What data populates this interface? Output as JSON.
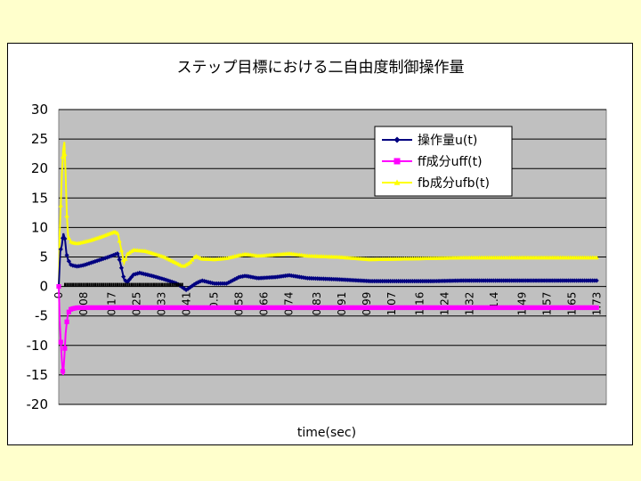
{
  "colors": {
    "page_background": "#ffffcc",
    "plot_background": "#c0c0c0",
    "gridline": "#000000",
    "series_u": "#000080",
    "series_uff": "#ff00ff",
    "series_ufb": "#ffff00"
  },
  "chart_data": {
    "type": "line",
    "title": "ステップ目標における二自由度制御操作量",
    "xlabel": "time(sec)",
    "ylabel": "",
    "ylim": [
      -20,
      30
    ],
    "yticks": [
      30,
      25,
      20,
      15,
      10,
      5,
      0,
      -5,
      -10,
      -15,
      -20
    ],
    "grid": true,
    "legend_position": "top-right",
    "x_tick_labels": [
      "0",
      "0.08",
      "0.17",
      "0.25",
      "0.33",
      "0.41",
      "0.5",
      "0.58",
      "0.66",
      "0.74",
      "0.83",
      "0.91",
      "0.99",
      "1.07",
      "1.16",
      "1.24",
      "1.32",
      "1.4",
      "1.49",
      "1.57",
      "1.65",
      "1.73"
    ],
    "x_tick_values": [
      0,
      0.08,
      0.17,
      0.25,
      0.33,
      0.41,
      0.5,
      0.58,
      0.66,
      0.74,
      0.83,
      0.91,
      0.99,
      1.07,
      1.16,
      1.24,
      1.32,
      1.4,
      1.49,
      1.57,
      1.65,
      1.73
    ],
    "xlim": [
      0,
      1.76
    ],
    "series": [
      {
        "name": "操作量u(t)",
        "marker": "diamond",
        "color": "#000080",
        "points": [
          [
            0,
            0
          ],
          [
            0.005,
            6
          ],
          [
            0.01,
            7
          ],
          [
            0.015,
            9
          ],
          [
            0.02,
            8
          ],
          [
            0.025,
            5.5
          ],
          [
            0.03,
            4.5
          ],
          [
            0.04,
            3.6
          ],
          [
            0.06,
            3.4
          ],
          [
            0.08,
            3.6
          ],
          [
            0.12,
            4.3
          ],
          [
            0.16,
            5.0
          ],
          [
            0.19,
            5.6
          ],
          [
            0.2,
            3.5
          ],
          [
            0.21,
            1.2
          ],
          [
            0.22,
            0.7
          ],
          [
            0.24,
            2.0
          ],
          [
            0.26,
            2.3
          ],
          [
            0.3,
            1.8
          ],
          [
            0.34,
            1.2
          ],
          [
            0.38,
            0.5
          ],
          [
            0.41,
            -0.6
          ],
          [
            0.44,
            0.5
          ],
          [
            0.46,
            1.0
          ],
          [
            0.5,
            0.5
          ],
          [
            0.54,
            0.5
          ],
          [
            0.58,
            1.6
          ],
          [
            0.6,
            1.8
          ],
          [
            0.64,
            1.4
          ],
          [
            0.7,
            1.6
          ],
          [
            0.74,
            1.9
          ],
          [
            0.8,
            1.4
          ],
          [
            0.9,
            1.2
          ],
          [
            1.0,
            0.9
          ],
          [
            1.1,
            0.9
          ],
          [
            1.2,
            0.9
          ],
          [
            1.3,
            1.0
          ],
          [
            1.4,
            1.0
          ],
          [
            1.5,
            1.0
          ],
          [
            1.6,
            1.0
          ],
          [
            1.73,
            1.0
          ]
        ]
      },
      {
        "name": "ff成分uff(t)",
        "marker": "square",
        "color": "#ff00ff",
        "points": [
          [
            0,
            0
          ],
          [
            0.003,
            -5.5
          ],
          [
            0.006,
            -9
          ],
          [
            0.01,
            -12.5
          ],
          [
            0.014,
            -15
          ],
          [
            0.018,
            -12
          ],
          [
            0.022,
            -8
          ],
          [
            0.026,
            -6
          ],
          [
            0.03,
            -4.5
          ],
          [
            0.04,
            -3.8
          ],
          [
            0.06,
            -3.6
          ],
          [
            0.1,
            -3.6
          ],
          [
            0.3,
            -3.6
          ],
          [
            0.6,
            -3.6
          ],
          [
            1.0,
            -3.6
          ],
          [
            1.4,
            -3.6
          ],
          [
            1.73,
            -3.6
          ]
        ]
      },
      {
        "name": "fb成分ufb(t)",
        "marker": "triangle",
        "color": "#ffff00",
        "points": [
          [
            0,
            0
          ],
          [
            0.003,
            9
          ],
          [
            0.006,
            13
          ],
          [
            0.01,
            19
          ],
          [
            0.014,
            23
          ],
          [
            0.018,
            24.5
          ],
          [
            0.022,
            19
          ],
          [
            0.026,
            12
          ],
          [
            0.03,
            8.5
          ],
          [
            0.04,
            7.5
          ],
          [
            0.06,
            7.3
          ],
          [
            0.1,
            7.8
          ],
          [
            0.14,
            8.5
          ],
          [
            0.18,
            9.3
          ],
          [
            0.19,
            9.0
          ],
          [
            0.2,
            6.5
          ],
          [
            0.21,
            4.0
          ],
          [
            0.22,
            5.5
          ],
          [
            0.24,
            6.2
          ],
          [
            0.28,
            6.0
          ],
          [
            0.34,
            5.0
          ],
          [
            0.4,
            3.4
          ],
          [
            0.42,
            4.0
          ],
          [
            0.44,
            5.2
          ],
          [
            0.46,
            4.7
          ],
          [
            0.5,
            4.6
          ],
          [
            0.54,
            4.8
          ],
          [
            0.58,
            5.3
          ],
          [
            0.6,
            5.5
          ],
          [
            0.64,
            5.2
          ],
          [
            0.7,
            5.4
          ],
          [
            0.74,
            5.6
          ],
          [
            0.8,
            5.2
          ],
          [
            0.9,
            5.0
          ],
          [
            1.0,
            4.6
          ],
          [
            1.1,
            4.7
          ],
          [
            1.2,
            4.8
          ],
          [
            1.3,
            4.9
          ],
          [
            1.4,
            4.9
          ],
          [
            1.5,
            4.9
          ],
          [
            1.6,
            4.9
          ],
          [
            1.73,
            4.9
          ]
        ]
      }
    ]
  }
}
